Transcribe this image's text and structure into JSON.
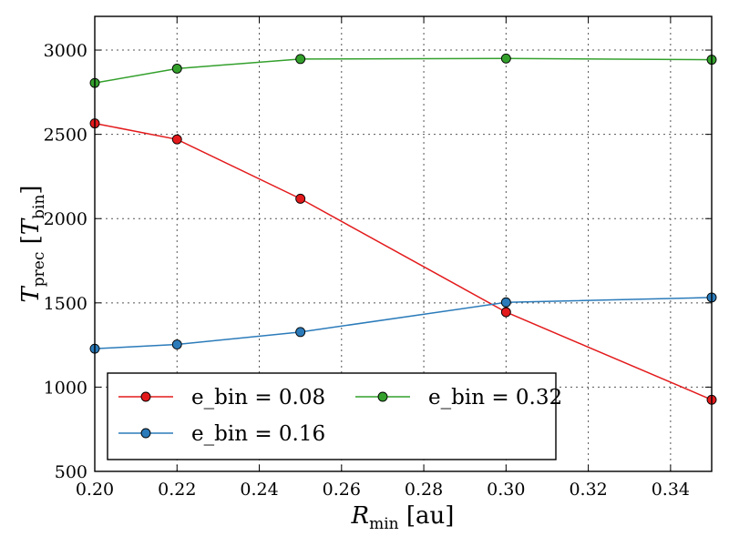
{
  "chart_data": {
    "type": "line",
    "xlabel": "R_min [au]",
    "ylabel": "T_prec [T_bin]",
    "xlim": [
      0.2,
      0.35
    ],
    "ylim": [
      500,
      3200
    ],
    "xticks": [
      "0.20",
      "0.22",
      "0.24",
      "0.26",
      "0.28",
      "0.30",
      "0.32",
      "0.34"
    ],
    "yticks": [
      "500",
      "1000",
      "1500",
      "2000",
      "2500",
      "3000"
    ],
    "grid": true,
    "legend_position": "lower-left",
    "x": [
      0.2,
      0.22,
      0.25,
      0.3,
      0.35
    ],
    "series": [
      {
        "name": "e_bin = 0.08",
        "color": "#e31a1c",
        "values": [
          2565,
          2470,
          2118,
          1445,
          925
        ]
      },
      {
        "name": "e_bin = 0.16",
        "color": "#2b7bba",
        "values": [
          1228,
          1253,
          1327,
          1503,
          1532
        ]
      },
      {
        "name": "e_bin = 0.32",
        "color": "#33a02c",
        "values": [
          2805,
          2890,
          2947,
          2950,
          2943
        ]
      }
    ]
  }
}
